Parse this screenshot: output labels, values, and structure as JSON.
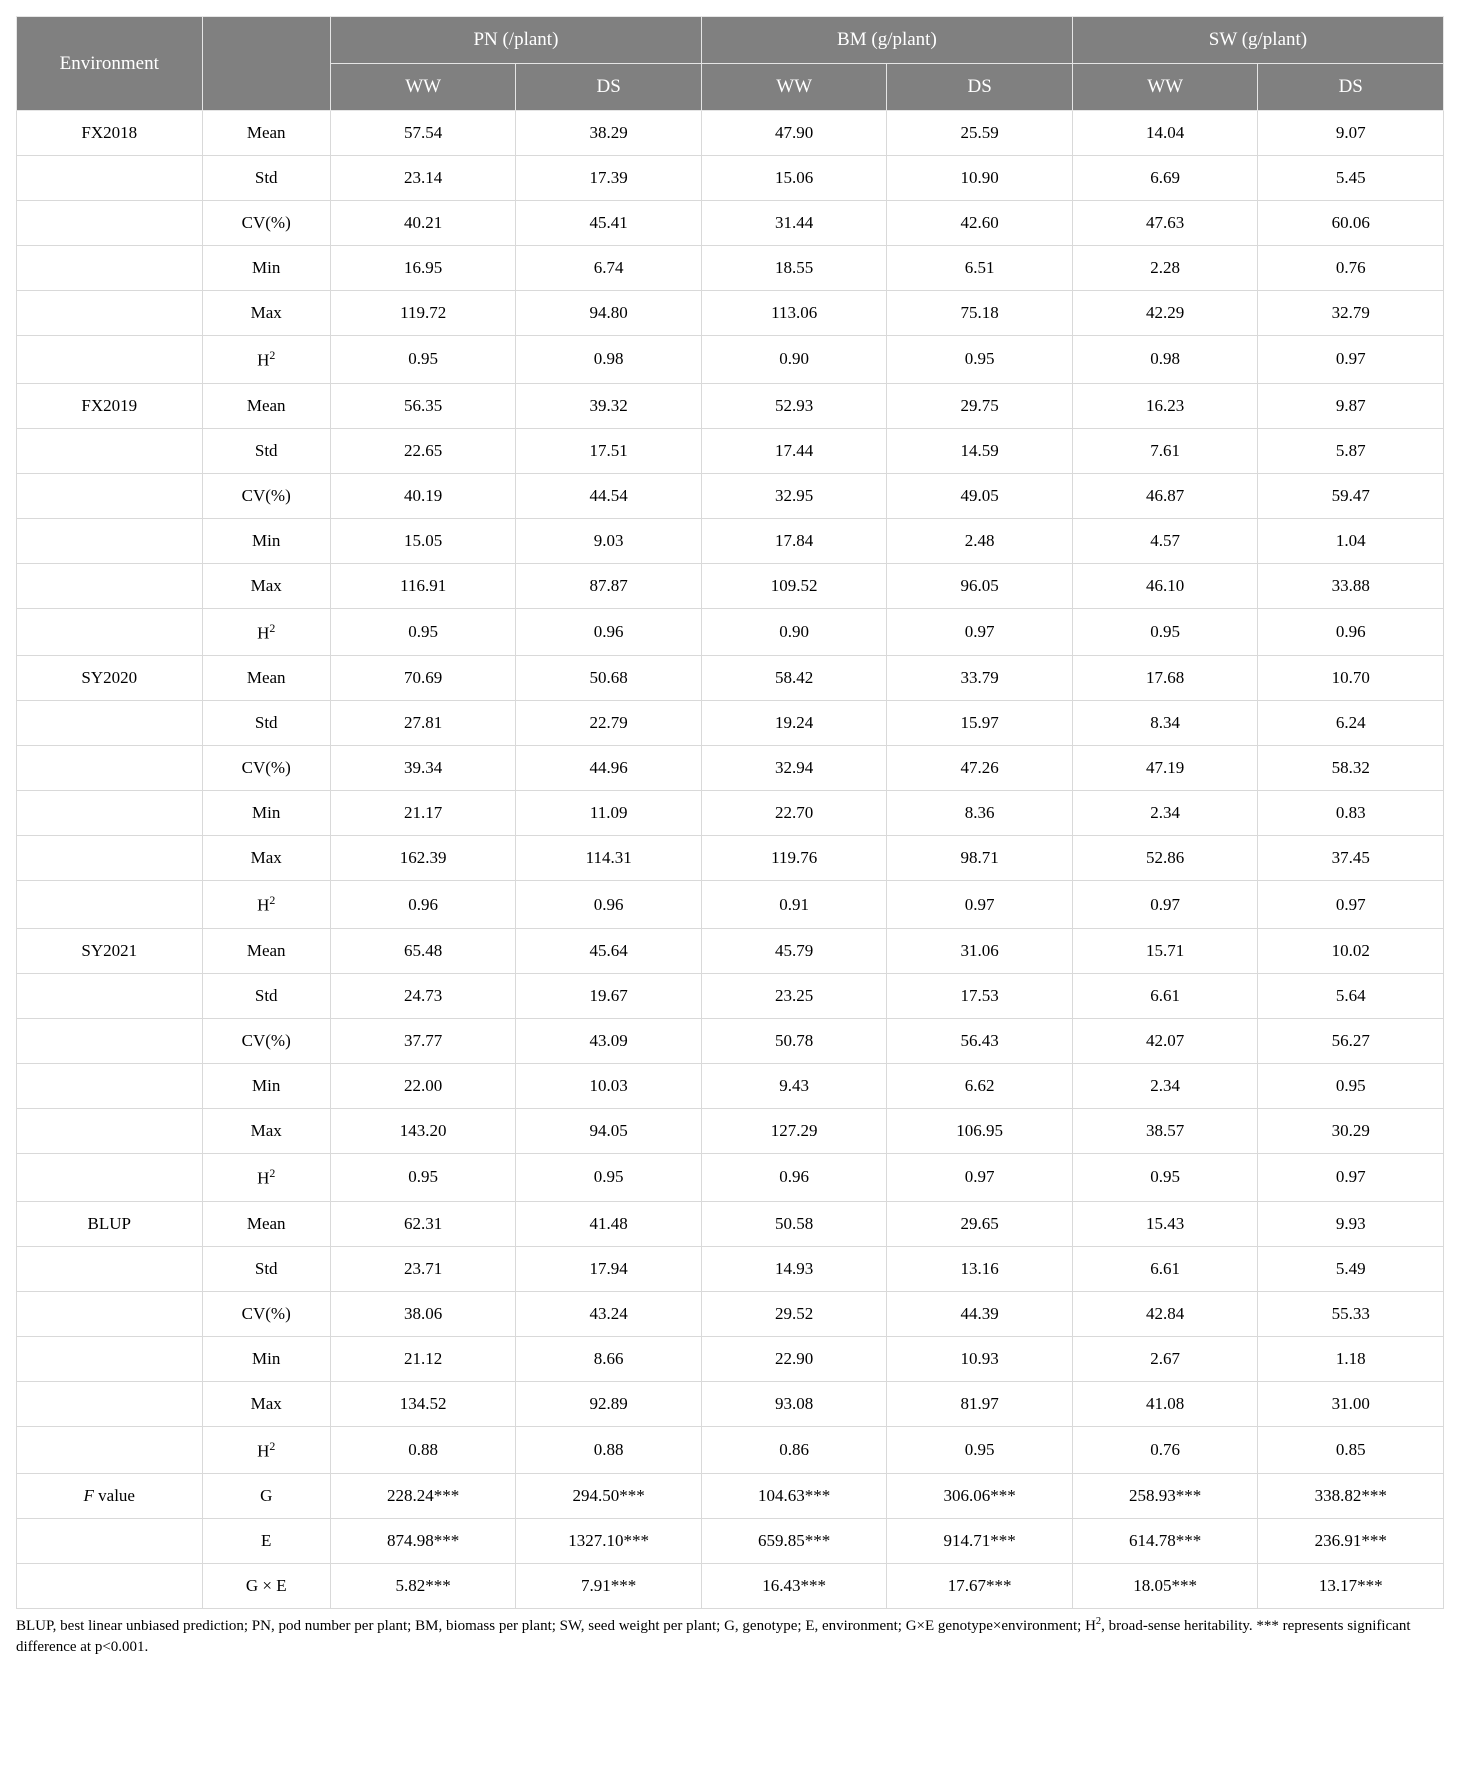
{
  "table": {
    "header": {
      "env_label": "Environment",
      "blank_label": "",
      "groups": [
        {
          "title": "PN (/plant)",
          "subcols": [
            "WW",
            "DS"
          ]
        },
        {
          "title": "BM (g/plant)",
          "subcols": [
            "WW",
            "DS"
          ]
        },
        {
          "title": "SW (g/plant)",
          "subcols": [
            "WW",
            "DS"
          ]
        }
      ]
    },
    "colors": {
      "header_bg": "#808080",
      "header_fg": "#ffffff",
      "cell_bg": "#ffffff",
      "cell_fg": "#000000",
      "border": "#d9d9d9"
    },
    "fonts": {
      "header_size_pt": 14,
      "cell_size_pt": 12,
      "footnote_size_pt": 11
    },
    "stat_labels": [
      "Mean",
      "Std",
      "CV(%)",
      "Min",
      "Max",
      "H²"
    ],
    "envs": [
      {
        "name": "FX2018",
        "rows": {
          "Mean": [
            "57.54",
            "38.29",
            "47.90",
            "25.59",
            "14.04",
            "9.07"
          ],
          "Std": [
            "23.14",
            "17.39",
            "15.06",
            "10.90",
            "6.69",
            "5.45"
          ],
          "CV(%)": [
            "40.21",
            "45.41",
            "31.44",
            "42.60",
            "47.63",
            "60.06"
          ],
          "Min": [
            "16.95",
            "6.74",
            "18.55",
            "6.51",
            "2.28",
            "0.76"
          ],
          "Max": [
            "119.72",
            "94.80",
            "113.06",
            "75.18",
            "42.29",
            "32.79"
          ],
          "H²": [
            "0.95",
            "0.98",
            "0.90",
            "0.95",
            "0.98",
            "0.97"
          ]
        }
      },
      {
        "name": "FX2019",
        "rows": {
          "Mean": [
            "56.35",
            "39.32",
            "52.93",
            "29.75",
            "16.23",
            "9.87"
          ],
          "Std": [
            "22.65",
            "17.51",
            "17.44",
            "14.59",
            "7.61",
            "5.87"
          ],
          "CV(%)": [
            "40.19",
            "44.54",
            "32.95",
            "49.05",
            "46.87",
            "59.47"
          ],
          "Min": [
            "15.05",
            "9.03",
            "17.84",
            "2.48",
            "4.57",
            "1.04"
          ],
          "Max": [
            "116.91",
            "87.87",
            "109.52",
            "96.05",
            "46.10",
            "33.88"
          ],
          "H²": [
            "0.95",
            "0.96",
            "0.90",
            "0.97",
            "0.95",
            "0.96"
          ]
        }
      },
      {
        "name": "SY2020",
        "rows": {
          "Mean": [
            "70.69",
            "50.68",
            "58.42",
            "33.79",
            "17.68",
            "10.70"
          ],
          "Std": [
            "27.81",
            "22.79",
            "19.24",
            "15.97",
            "8.34",
            "6.24"
          ],
          "CV(%)": [
            "39.34",
            "44.96",
            "32.94",
            "47.26",
            "47.19",
            "58.32"
          ],
          "Min": [
            "21.17",
            "11.09",
            "22.70",
            "8.36",
            "2.34",
            "0.83"
          ],
          "Max": [
            "162.39",
            "114.31",
            "119.76",
            "98.71",
            "52.86",
            "37.45"
          ],
          "H²": [
            "0.96",
            "0.96",
            "0.91",
            "0.97",
            "0.97",
            "0.97"
          ]
        }
      },
      {
        "name": "SY2021",
        "rows": {
          "Mean": [
            "65.48",
            "45.64",
            "45.79",
            "31.06",
            "15.71",
            "10.02"
          ],
          "Std": [
            "24.73",
            "19.67",
            "23.25",
            "17.53",
            "6.61",
            "5.64"
          ],
          "CV(%)": [
            "37.77",
            "43.09",
            "50.78",
            "56.43",
            "42.07",
            "56.27"
          ],
          "Min": [
            "22.00",
            "10.03",
            "9.43",
            "6.62",
            "2.34",
            "0.95"
          ],
          "Max": [
            "143.20",
            "94.05",
            "127.29",
            "106.95",
            "38.57",
            "30.29"
          ],
          "H²": [
            "0.95",
            "0.95",
            "0.96",
            "0.97",
            "0.95",
            "0.97"
          ]
        }
      },
      {
        "name": "BLUP",
        "rows": {
          "Mean": [
            "62.31",
            "41.48",
            "50.58",
            "29.65",
            "15.43",
            "9.93"
          ],
          "Std": [
            "23.71",
            "17.94",
            "14.93",
            "13.16",
            "6.61",
            "5.49"
          ],
          "CV(%)": [
            "38.06",
            "43.24",
            "29.52",
            "44.39",
            "42.84",
            "55.33"
          ],
          "Min": [
            "21.12",
            "8.66",
            "22.90",
            "10.93",
            "2.67",
            "1.18"
          ],
          "Max": [
            "134.52",
            "92.89",
            "93.08",
            "81.97",
            "41.08",
            "31.00"
          ],
          "H²": [
            "0.88",
            "0.88",
            "0.86",
            "0.95",
            "0.76",
            "0.85"
          ]
        }
      }
    ],
    "fvalue": {
      "name": "F value",
      "italic": true,
      "labels": [
        "G",
        "E",
        "G × E"
      ],
      "rows": {
        "G": [
          "228.24***",
          "294.50***",
          "104.63***",
          "306.06***",
          "258.93***",
          "338.82***"
        ],
        "E": [
          "874.98***",
          "1327.10***",
          "659.85***",
          "914.71***",
          "614.78***",
          "236.91***"
        ],
        "G × E": [
          "5.82***",
          "7.91***",
          "16.43***",
          "17.67***",
          "18.05***",
          "13.17***"
        ]
      }
    }
  },
  "footnote": "BLUP, best linear unbiased prediction; PN, pod number per plant; BM, biomass per plant; SW, seed weight per plant; G, genotype; E, environment; G×E genotype×environment; H², broad-sense heritability. *** represents significant difference at p<0.001."
}
